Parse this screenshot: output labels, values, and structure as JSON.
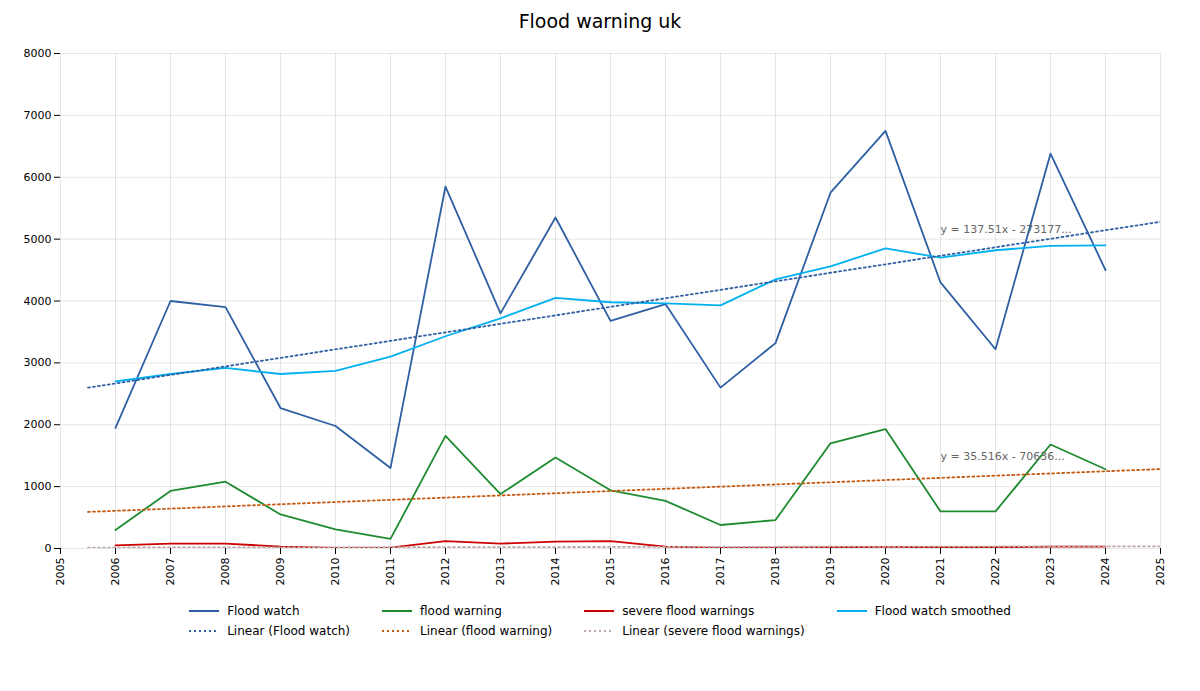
{
  "chart_data": {
    "type": "line",
    "title": "Flood warning uk",
    "x": [
      2006,
      2007,
      2008,
      2009,
      2010,
      2011,
      2012,
      2013,
      2014,
      2015,
      2016,
      2017,
      2018,
      2019,
      2020,
      2021,
      2022,
      2023,
      2024
    ],
    "xlim": [
      2005,
      2025
    ],
    "xticks": [
      2005,
      2006,
      2007,
      2008,
      2009,
      2010,
      2011,
      2012,
      2013,
      2014,
      2015,
      2016,
      2017,
      2018,
      2019,
      2020,
      2021,
      2022,
      2023,
      2024,
      2025
    ],
    "ylim": [
      0,
      8000
    ],
    "yticks": [
      0,
      1000,
      2000,
      3000,
      4000,
      5000,
      6000,
      7000,
      8000
    ],
    "grid": true,
    "legend": "bottom",
    "series": [
      {
        "name": "Flood watch",
        "color": "#2e5fa3",
        "values": [
          1950,
          4000,
          3900,
          2270,
          1980,
          1300,
          5850,
          3800,
          5350,
          3680,
          3950,
          2600,
          3320,
          5750,
          6750,
          4300,
          3220,
          6380,
          4500
        ]
      },
      {
        "name": "flood warning",
        "color": "#1e8b30",
        "values": [
          300,
          930,
          1080,
          550,
          310,
          155,
          1820,
          880,
          1470,
          940,
          770,
          380,
          460,
          1700,
          1930,
          600,
          600,
          1680,
          1280
        ]
      },
      {
        "name": "severe flood warnings",
        "color": "#cc0000",
        "values": [
          50,
          80,
          80,
          30,
          10,
          15,
          120,
          80,
          110,
          120,
          30,
          10,
          15,
          20,
          25,
          20,
          20,
          30,
          30
        ]
      },
      {
        "name": "Flood watch smoothed",
        "color": "#00b0f0",
        "values": [
          2700,
          2820,
          2920,
          2820,
          2870,
          3100,
          3430,
          3720,
          4050,
          3980,
          3960,
          3930,
          4350,
          4560,
          4850,
          4700,
          4820,
          4890,
          4900
        ]
      },
      {
        "name": "Linear (Flood watch)",
        "color": "#2e5fa3",
        "line_style": "dotted",
        "x": [
          2005.5,
          2025
        ],
        "values": [
          2599.305,
          5280.75
        ]
      },
      {
        "name": "Linear (flood warning)",
        "color": "#c55a11",
        "line_style": "dotted",
        "x": [
          2005.5,
          2025
        ],
        "values": [
          591.338,
          1283.9
        ]
      },
      {
        "name": "Linear (severe flood warnings)",
        "color": "#bfaaaa",
        "line_style": "dotted",
        "x": [
          2005.5,
          2025
        ],
        "values": [
          15,
          35
        ]
      }
    ],
    "annotations": [
      {
        "text": "y = 137.51x - 273177...",
        "x": 2021.0,
        "y": 5100
      },
      {
        "text": "y = 35.516x - 70636...",
        "x": 2021.0,
        "y": 1430
      }
    ]
  }
}
